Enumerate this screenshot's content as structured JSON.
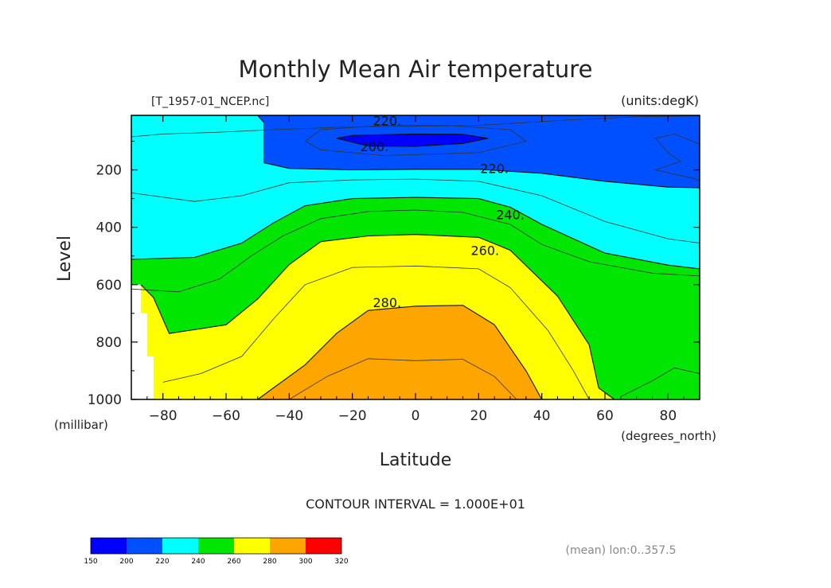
{
  "chart_data": {
    "type": "contour",
    "title": "Monthly Mean Air temperature",
    "file_label": "[T_1957-01_NCEP.nc]",
    "units_label": "(units:degK)",
    "xlabel": "Latitude",
    "x_units": "(degrees_north)",
    "ylabel": "Level",
    "y_units": "(millibar)",
    "xlim": [
      -90,
      90
    ],
    "ylim": [
      1000,
      10
    ],
    "x_ticks": [
      -80,
      -60,
      -40,
      -20,
      0,
      20,
      40,
      60,
      80
    ],
    "x_tick_labels": [
      "−80",
      "−60",
      "−40",
      "−20",
      "0",
      "20",
      "40",
      "60",
      "80"
    ],
    "y_ticks": [
      200,
      400,
      600,
      800,
      1000
    ],
    "y_tick_labels": [
      "200",
      "400",
      "600",
      "800",
      "1000"
    ],
    "contour_labels": [
      {
        "text": "220.",
        "lat": -9,
        "level": 28
      },
      {
        "text": "200.",
        "lat": -13,
        "level": 118
      },
      {
        "text": "220.",
        "lat": 25,
        "level": 195
      },
      {
        "text": "240.",
        "lat": 30,
        "level": 355
      },
      {
        "text": "260.",
        "lat": 22,
        "level": 480
      },
      {
        "text": "280.",
        "lat": -9,
        "level": 662
      }
    ],
    "boundaries": [
      {
        "value": 200,
        "points": [
          [
            -25,
            90
          ],
          [
            -20,
            80
          ],
          [
            0,
            75
          ],
          [
            15,
            76
          ],
          [
            23,
            90
          ],
          [
            15,
            108
          ],
          [
            0,
            118
          ],
          [
            -15,
            117
          ],
          [
            -25,
            90
          ]
        ]
      },
      {
        "value": 220,
        "points": [
          [
            -90,
            10
          ],
          [
            -50,
            10
          ],
          [
            -48,
            35
          ],
          [
            -48,
            95
          ],
          [
            -48,
            175
          ],
          [
            -40,
            195
          ],
          [
            -20,
            200
          ],
          [
            0,
            198
          ],
          [
            20,
            198
          ],
          [
            40,
            212
          ],
          [
            60,
            240
          ],
          [
            80,
            260
          ],
          [
            90,
            262
          ]
        ]
      },
      {
        "value": 240,
        "points": [
          [
            -90,
            512
          ],
          [
            -70,
            505
          ],
          [
            -55,
            455
          ],
          [
            -45,
            385
          ],
          [
            -35,
            325
          ],
          [
            -20,
            300
          ],
          [
            0,
            296
          ],
          [
            20,
            300
          ],
          [
            30,
            330
          ],
          [
            40,
            390
          ],
          [
            60,
            490
          ],
          [
            80,
            532
          ],
          [
            90,
            545
          ]
        ]
      },
      {
        "value": 260,
        "points": [
          [
            -87,
            600
          ],
          [
            -83,
            645
          ],
          [
            -78,
            770
          ],
          [
            -72,
            760
          ],
          [
            -60,
            740
          ],
          [
            -50,
            650
          ],
          [
            -40,
            530
          ],
          [
            -30,
            450
          ],
          [
            -15,
            430
          ],
          [
            0,
            425
          ],
          [
            20,
            435
          ],
          [
            30,
            480
          ],
          [
            45,
            640
          ],
          [
            55,
            810
          ],
          [
            58,
            960
          ],
          [
            63,
            1000
          ]
        ]
      },
      {
        "value": 280,
        "points": [
          [
            -50,
            1000
          ],
          [
            -35,
            880
          ],
          [
            -25,
            770
          ],
          [
            -15,
            690
          ],
          [
            0,
            675
          ],
          [
            15,
            672
          ],
          [
            25,
            740
          ],
          [
            35,
            900
          ],
          [
            40,
            1000
          ]
        ]
      }
    ],
    "colorbar": {
      "values": [
        150,
        200,
        220,
        240,
        260,
        280,
        300,
        320
      ],
      "colors": [
        "#0000ff",
        "#0050ff",
        "#00ffff",
        "#00e600",
        "#ffff00",
        "#ffa500",
        "#ff0000"
      ]
    },
    "fill_colors": {
      "lt200": "#0000ff",
      "b200_220": "#0050ff",
      "b220_240": "#00ffff",
      "b240_260": "#00e600",
      "b260_280": "#ffff00",
      "b280_300": "#ffa500"
    },
    "contour_interval": "CONTOUR INTERVAL = 1.000E+01",
    "mean_note": "(mean) lon:0..357.5"
  }
}
